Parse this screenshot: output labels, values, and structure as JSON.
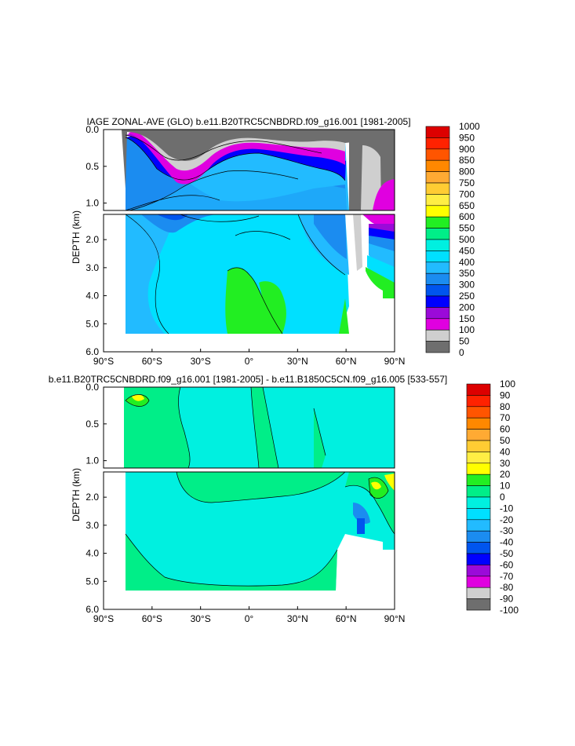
{
  "chart_data": [
    {
      "type": "heatmap",
      "title": "IAGE ZONAL-AVE (GLO) b.e11.B20TRC5CNBDRD.f09_g16.001 [1981-2005]",
      "ylabel": "DEPTH (km)",
      "xlabel": "",
      "x_ticks": [
        "90°S",
        "60°S",
        "30°S",
        "0°",
        "30°N",
        "60°N",
        "90°N"
      ],
      "y_ticks_upper": [
        "0.0",
        "0.5",
        "1.0"
      ],
      "y_ticks_lower": [
        "2.0",
        "3.0",
        "4.0",
        "5.0",
        "6.0"
      ],
      "xlim": [
        -90,
        90
      ],
      "ylim_upper_km": [
        0,
        1.1
      ],
      "ylim_lower_km": [
        1.1,
        6.0
      ],
      "colorbar": {
        "levels": [
          "0",
          "50",
          "100",
          "150",
          "200",
          "250",
          "300",
          "350",
          "400",
          "450",
          "500",
          "550",
          "600",
          "650",
          "700",
          "750",
          "800",
          "850",
          "900",
          "950",
          "1000"
        ],
        "colors": [
          "#6e6e6e",
          "#cfcfcf",
          "#e000e0",
          "#9b0ad9",
          "#0000ff",
          "#0055ee",
          "#1b8cf0",
          "#22bbff",
          "#00e0ff",
          "#00f0e0",
          "#00ee88",
          "#22ee22",
          "#ffff00",
          "#ffee44",
          "#ffcc33",
          "#ffaa33",
          "#ff8800",
          "#ff5500",
          "#ff2200",
          "#dd0000"
        ]
      }
    },
    {
      "type": "heatmap",
      "title": "b.e11.B20TRC5CNBDRD.f09_g16.001 [1981-2005] - b.e11.B1850C5CN.f09_g16.005 [533-557]",
      "ylabel": "DEPTH (km)",
      "xlabel": "",
      "x_ticks": [
        "90°S",
        "60°S",
        "30°S",
        "0°",
        "30°N",
        "60°N",
        "90°N"
      ],
      "y_ticks_upper": [
        "0.0",
        "0.5",
        "1.0"
      ],
      "y_ticks_lower": [
        "2.0",
        "3.0",
        "4.0",
        "5.0",
        "6.0"
      ],
      "xlim": [
        -90,
        90
      ],
      "ylim_upper_km": [
        0,
        1.1
      ],
      "ylim_lower_km": [
        1.1,
        6.0
      ],
      "colorbar": {
        "levels": [
          "-100",
          "-90",
          "-80",
          "-70",
          "-60",
          "-50",
          "-40",
          "-30",
          "-20",
          "-10",
          "0",
          "10",
          "20",
          "30",
          "40",
          "50",
          "60",
          "70",
          "80",
          "90",
          "100"
        ],
        "colors": [
          "#6e6e6e",
          "#cfcfcf",
          "#e000e0",
          "#9b0ad9",
          "#0000ff",
          "#0055ee",
          "#1b8cf0",
          "#22bbff",
          "#00e0ff",
          "#00f0e0",
          "#00ee88",
          "#22ee22",
          "#ffff00",
          "#ffee44",
          "#ffcc33",
          "#ffaa33",
          "#ff8800",
          "#ff5500",
          "#ff2200",
          "#dd0000"
        ]
      }
    }
  ]
}
